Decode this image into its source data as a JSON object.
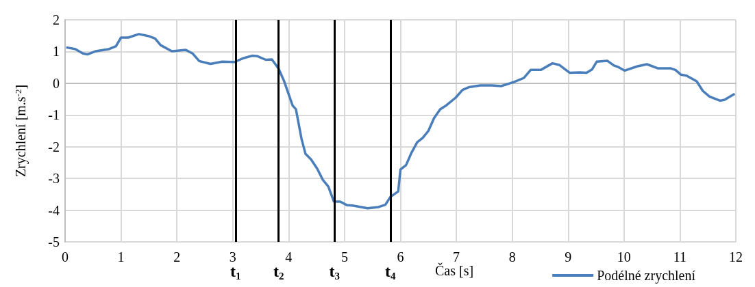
{
  "chart_data": {
    "type": "line",
    "xlabel": "Čas [s]",
    "ylabel": "Zrychlení [m.s$^{-2}$]",
    "xlim": [
      0,
      12
    ],
    "xticks": [
      0,
      1,
      2,
      3,
      4,
      5,
      6,
      7,
      8,
      9,
      10,
      11,
      12
    ],
    "ylim": [
      -5,
      2
    ],
    "yticks": [
      -5,
      -4,
      -3,
      -2,
      -1,
      0,
      1,
      2
    ],
    "grid": true,
    "legend": "bottom right",
    "marker": "none",
    "line_style": "solid",
    "series": [
      {
        "name": "Podélné zrychlení",
        "color": "#4a7ebb",
        "x": [
          0.02,
          0.18,
          0.32,
          0.4,
          0.55,
          0.79,
          0.91,
          1.0,
          1.13,
          1.32,
          1.49,
          1.61,
          1.71,
          1.91,
          2.16,
          2.28,
          2.4,
          2.6,
          2.81,
          3.03,
          3.19,
          3.35,
          3.43,
          3.59,
          3.7,
          3.82,
          3.92,
          4.07,
          4.13,
          4.23,
          4.3,
          4.4,
          4.51,
          4.61,
          4.71,
          4.81,
          4.92,
          5.04,
          5.16,
          5.41,
          5.61,
          5.73,
          5.82,
          5.96,
          6.0,
          6.1,
          6.2,
          6.3,
          6.4,
          6.5,
          6.6,
          6.71,
          6.81,
          6.99,
          7.11,
          7.23,
          7.43,
          7.64,
          7.8,
          7.96,
          8.03,
          8.21,
          8.33,
          8.51,
          8.72,
          8.84,
          9.03,
          9.21,
          9.33,
          9.43,
          9.51,
          9.7,
          9.82,
          9.9,
          10.01,
          10.23,
          10.41,
          10.61,
          10.84,
          10.92,
          11.02,
          11.12,
          11.3,
          11.41,
          11.53,
          11.72,
          11.8,
          11.98
        ],
        "values": [
          1.13,
          1.08,
          0.94,
          0.91,
          1.01,
          1.08,
          1.17,
          1.44,
          1.44,
          1.55,
          1.49,
          1.41,
          1.2,
          1.01,
          1.05,
          0.94,
          0.7,
          0.61,
          0.68,
          0.67,
          0.79,
          0.87,
          0.86,
          0.74,
          0.75,
          0.46,
          0.06,
          -0.7,
          -0.82,
          -1.75,
          -2.22,
          -2.4,
          -2.69,
          -3.04,
          -3.26,
          -3.73,
          -3.73,
          -3.84,
          -3.86,
          -3.94,
          -3.9,
          -3.83,
          -3.58,
          -3.41,
          -2.72,
          -2.58,
          -2.18,
          -1.86,
          -1.72,
          -1.5,
          -1.1,
          -0.82,
          -0.71,
          -0.45,
          -0.21,
          -0.12,
          -0.07,
          -0.07,
          -0.09,
          0.0,
          0.04,
          0.17,
          0.42,
          0.42,
          0.63,
          0.58,
          0.33,
          0.34,
          0.33,
          0.44,
          0.68,
          0.71,
          0.56,
          0.51,
          0.4,
          0.53,
          0.6,
          0.47,
          0.47,
          0.42,
          0.27,
          0.24,
          0.06,
          -0.24,
          -0.42,
          -0.55,
          -0.52,
          -0.33
        ]
      }
    ],
    "ref_lines": [
      {
        "axis": "x",
        "value": 3.05,
        "label": "t$_{1}$",
        "color": "#000000"
      },
      {
        "axis": "x",
        "value": 3.82,
        "label": "t$_{2}$",
        "color": "#000000"
      },
      {
        "axis": "x",
        "value": 4.82,
        "label": "t$_{3}$",
        "color": "#000000"
      },
      {
        "axis": "x",
        "value": 5.82,
        "label": "t$_{4}$",
        "color": "#000000"
      }
    ]
  }
}
